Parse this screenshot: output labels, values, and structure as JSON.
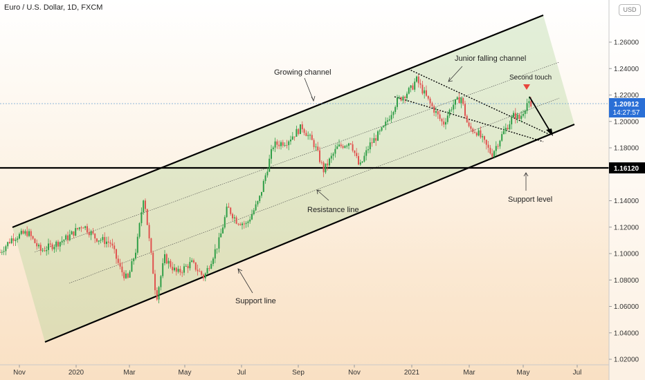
{
  "chart_data": {
    "type": "candlestick",
    "title": "Euro / U.S. Dollar, 1D, FXCM",
    "currency": "USD",
    "x_ticks": [
      "Nov",
      "2020",
      "Mar",
      "May",
      "Jul",
      "Sep",
      "Nov",
      "2021",
      "Mar",
      "May",
      "Jul"
    ],
    "y_ticks": [
      "1.26000",
      "1.24000",
      "1.22000",
      "1.20000",
      "1.18000",
      "1.14000",
      "1.12000",
      "1.10000",
      "1.08000",
      "1.06000",
      "1.04000",
      "1.02000"
    ],
    "ylim": [
      1.01,
      1.275
    ],
    "price_tag": {
      "value": "1.20912",
      "countdown": "14:27:57",
      "color": "#2a6fd6"
    },
    "support_level": {
      "value": 1.1612,
      "label": "1.16120"
    },
    "annotations": {
      "growing_channel": "Growing channel",
      "junior_falling_channel": "Junior falling channel",
      "second_touch": "Second touch",
      "support_level": "Support level",
      "resistance_line": "Resistance line",
      "support_line": "Support line"
    },
    "colors": {
      "up": "#2f9e47",
      "down": "#e0524f",
      "channel_fill": "#a9d18e",
      "arrow": "#e8453c"
    },
    "close_path": [
      [
        "2019-10-01",
        1.101
      ],
      [
        "2019-10-15",
        1.112
      ],
      [
        "2019-11-01",
        1.116
      ],
      [
        "2019-11-15",
        1.102
      ],
      [
        "2019-12-01",
        1.107
      ],
      [
        "2019-12-15",
        1.112
      ],
      [
        "2020-01-01",
        1.122
      ],
      [
        "2020-01-15",
        1.112
      ],
      [
        "2020-02-01",
        1.108
      ],
      [
        "2020-02-12",
        1.088
      ],
      [
        "2020-02-20",
        1.08
      ],
      [
        "2020-03-01",
        1.105
      ],
      [
        "2020-03-09",
        1.145
      ],
      [
        "2020-03-15",
        1.11
      ],
      [
        "2020-03-23",
        1.066
      ],
      [
        "2020-04-01",
        1.097
      ],
      [
        "2020-04-15",
        1.085
      ],
      [
        "2020-05-01",
        1.093
      ],
      [
        "2020-05-15",
        1.082
      ],
      [
        "2020-06-01",
        1.11
      ],
      [
        "2020-06-10",
        1.135
      ],
      [
        "2020-06-20",
        1.125
      ],
      [
        "2020-07-01",
        1.122
      ],
      [
        "2020-07-15",
        1.14
      ],
      [
        "2020-07-31",
        1.182
      ],
      [
        "2020-08-15",
        1.185
      ],
      [
        "2020-09-01",
        1.196
      ],
      [
        "2020-09-15",
        1.182
      ],
      [
        "2020-09-25",
        1.163
      ],
      [
        "2020-10-10",
        1.18
      ],
      [
        "2020-10-25",
        1.185
      ],
      [
        "2020-11-04",
        1.165
      ],
      [
        "2020-11-15",
        1.182
      ],
      [
        "2020-12-01",
        1.195
      ],
      [
        "2020-12-15",
        1.215
      ],
      [
        "2021-01-01",
        1.225
      ],
      [
        "2021-01-06",
        1.232
      ],
      [
        "2021-01-20",
        1.215
      ],
      [
        "2021-02-05",
        1.198
      ],
      [
        "2021-02-15",
        1.212
      ],
      [
        "2021-02-25",
        1.218
      ],
      [
        "2021-03-05",
        1.195
      ],
      [
        "2021-03-15",
        1.192
      ],
      [
        "2021-03-31",
        1.175
      ],
      [
        "2021-04-10",
        1.188
      ],
      [
        "2021-04-25",
        1.205
      ],
      [
        "2021-05-01",
        1.202
      ],
      [
        "2021-05-10",
        1.215
      ],
      [
        "2021-05-14",
        1.209
      ]
    ]
  }
}
